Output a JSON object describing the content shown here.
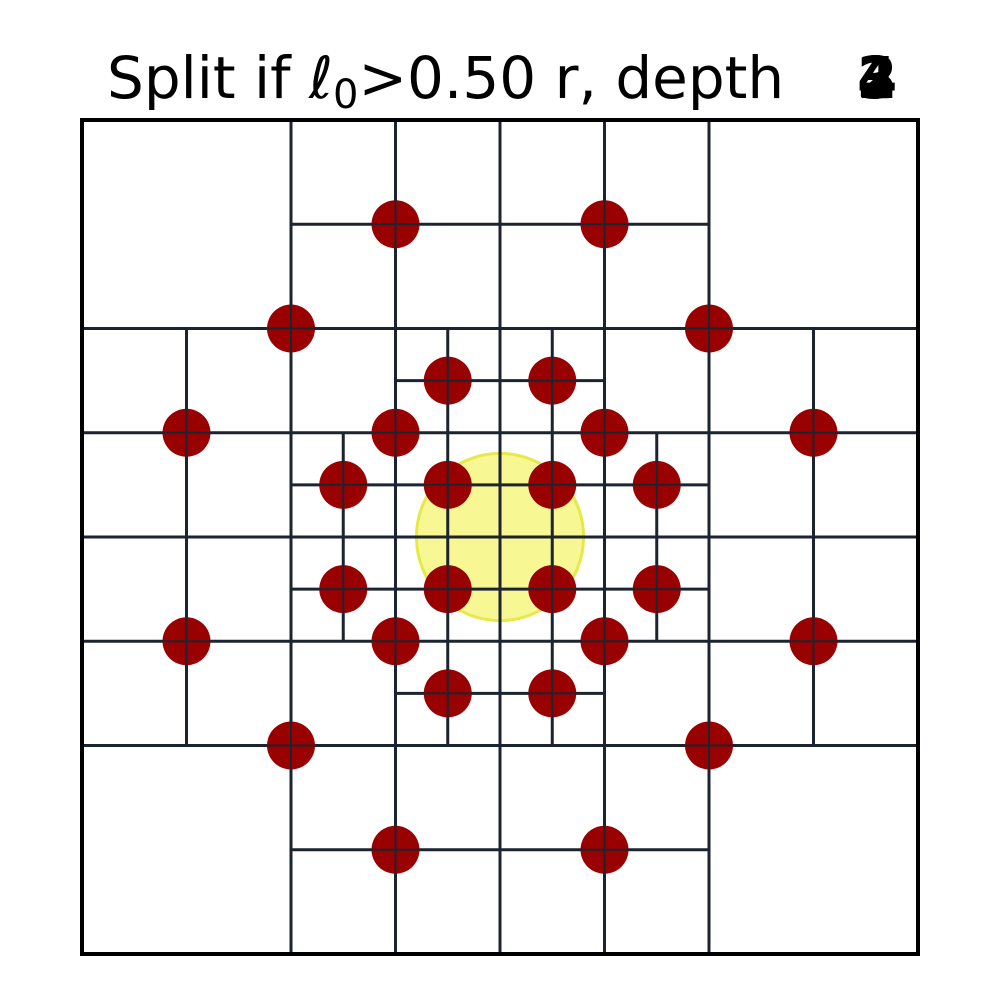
{
  "title": {
    "prefix": "Split if ",
    "symbol": "ℓ",
    "subscript": "0",
    "suffix": ">0.50 r, depth ",
    "depth_overlapped": [
      "2",
      "3",
      "4"
    ]
  },
  "colors": {
    "frame": "#000000",
    "grid_line": "#1c2430",
    "particle": "#990000",
    "source_fill": "#f2f25a",
    "source_edge": "#e8e84a",
    "background": "#ffffff"
  },
  "domain": {
    "xmin": 0,
    "xmax": 8,
    "ymin": 0,
    "ymax": 8
  },
  "source": {
    "cx": 4.0,
    "cy": 4.0,
    "r": 0.8,
    "opacity": 0.65
  },
  "grid_segments": [
    [
      4,
      0,
      4,
      8
    ],
    [
      0,
      4,
      8,
      4
    ],
    [
      2,
      0,
      2,
      8
    ],
    [
      6,
      0,
      6,
      8
    ],
    [
      0,
      2,
      8,
      2
    ],
    [
      0,
      6,
      8,
      6
    ],
    [
      3,
      0,
      3,
      2
    ],
    [
      5,
      0,
      5,
      2
    ],
    [
      2,
      1,
      6,
      1
    ],
    [
      3,
      6,
      3,
      8
    ],
    [
      5,
      6,
      5,
      8
    ],
    [
      2,
      7,
      6,
      7
    ],
    [
      0,
      3,
      2,
      3
    ],
    [
      0,
      5,
      2,
      5
    ],
    [
      1,
      2,
      1,
      6
    ],
    [
      6,
      3,
      8,
      3
    ],
    [
      6,
      5,
      8,
      5
    ],
    [
      7,
      2,
      7,
      6
    ],
    [
      3,
      2,
      3,
      6
    ],
    [
      5,
      2,
      5,
      6
    ],
    [
      2,
      3,
      6,
      3
    ],
    [
      2,
      5,
      6,
      5
    ],
    [
      2.5,
      3,
      2.5,
      5
    ],
    [
      2,
      3.5,
      3,
      3.5
    ],
    [
      2,
      4.5,
      3,
      4.5
    ],
    [
      5.5,
      3,
      5.5,
      5
    ],
    [
      5,
      3.5,
      6,
      3.5
    ],
    [
      5,
      4.5,
      6,
      4.5
    ],
    [
      3.5,
      2,
      3.5,
      3
    ],
    [
      4.5,
      2,
      4.5,
      3
    ],
    [
      3,
      2.5,
      5,
      2.5
    ],
    [
      3.5,
      5,
      3.5,
      6
    ],
    [
      4.5,
      5,
      4.5,
      6
    ],
    [
      3,
      5.5,
      5,
      5.5
    ],
    [
      3.5,
      3,
      3.5,
      5
    ],
    [
      4.5,
      3,
      4.5,
      5
    ],
    [
      3,
      3.5,
      5,
      3.5
    ],
    [
      3,
      4.5,
      5,
      4.5
    ]
  ],
  "particles": [
    [
      3,
      7
    ],
    [
      5,
      7
    ],
    [
      2,
      6
    ],
    [
      6,
      6
    ],
    [
      3.5,
      5.5
    ],
    [
      4.5,
      5.5
    ],
    [
      1,
      5
    ],
    [
      3,
      5
    ],
    [
      5,
      5
    ],
    [
      7,
      5
    ],
    [
      2.5,
      4.5
    ],
    [
      3.5,
      4.5
    ],
    [
      4.5,
      4.5
    ],
    [
      5.5,
      4.5
    ],
    [
      2.5,
      3.5
    ],
    [
      3.5,
      3.5
    ],
    [
      4.5,
      3.5
    ],
    [
      5.5,
      3.5
    ],
    [
      1,
      3
    ],
    [
      3,
      3
    ],
    [
      5,
      3
    ],
    [
      7,
      3
    ],
    [
      3.5,
      2.5
    ],
    [
      4.5,
      2.5
    ],
    [
      2,
      2
    ],
    [
      6,
      2
    ],
    [
      3,
      1
    ],
    [
      5,
      1
    ]
  ]
}
